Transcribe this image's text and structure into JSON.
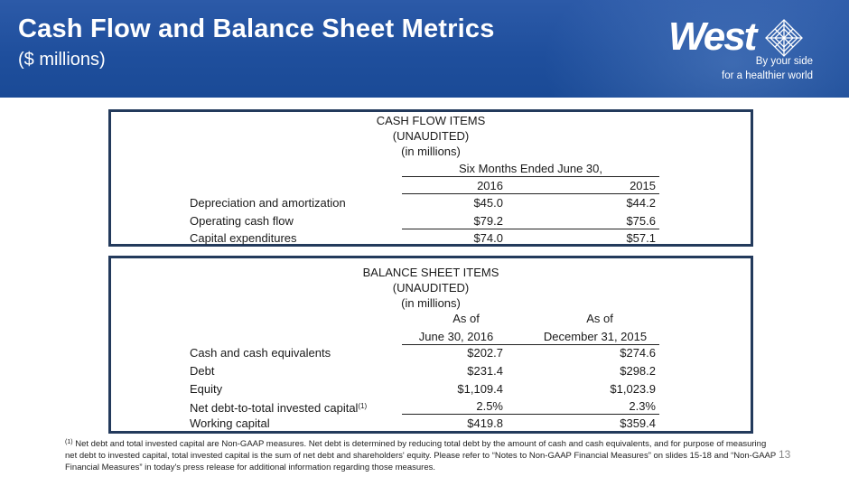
{
  "header": {
    "title": "Cash Flow and Balance Sheet Metrics",
    "subtitle": "($ millions)"
  },
  "logo": {
    "wordmark": "West",
    "tagline_1": "By your side",
    "tagline_2": "for a healthier world"
  },
  "colors": {
    "banner": "#1f4f9d",
    "box_border": "#233a5c"
  },
  "cash_flow": {
    "title": "CASH FLOW ITEMS",
    "unaudited": "(UNAUDITED)",
    "unit": "(in millions)",
    "period_header": "Six Months Ended June 30,",
    "columns": [
      "2016",
      "2015"
    ],
    "rows": [
      {
        "label": "Depreciation and amortization",
        "values": [
          "$45.0",
          "$44.2"
        ]
      },
      {
        "label": "Operating cash flow",
        "values": [
          "$79.2",
          "$75.6"
        ]
      },
      {
        "label": "Capital expenditures",
        "values": [
          "$74.0",
          "$57.1"
        ]
      }
    ]
  },
  "balance_sheet": {
    "title": "BALANCE SHEET ITEMS",
    "unaudited": "(UNAUDITED)",
    "unit": "(in millions)",
    "columns": [
      {
        "line1": "As of",
        "line2": "June 30, 2016"
      },
      {
        "line1": "As of",
        "line2": "December 31, 2015"
      }
    ],
    "rows": [
      {
        "label": "Cash and cash equivalents",
        "values": [
          "$202.7",
          "$274.6"
        ]
      },
      {
        "label": "Debt",
        "values": [
          "$231.4",
          "$298.2"
        ]
      },
      {
        "label": "Equity",
        "values": [
          "$1,109.4",
          "$1,023.9"
        ]
      },
      {
        "label": "Net debt-to-total invested capital",
        "footnote_ref": "(1)",
        "values": [
          "2.5%",
          "2.3%"
        ]
      },
      {
        "label": "Working capital",
        "values": [
          "$419.8",
          "$359.4"
        ]
      }
    ]
  },
  "footnote": {
    "marker": "(1)",
    "text": "Net debt and total invested capital are Non-GAAP measures. Net debt is determined by reducing total debt by the amount of cash and cash equivalents, and for purpose of measuring net debt to invested capital, total invested capital is the sum of net debt and shareholders' equity. Please refer to “Notes to Non-GAAP Financial Measures” on slides 15-18 and “Non-GAAP Financial Measures” in today's press release for additional information regarding those measures."
  },
  "page_number": "13"
}
